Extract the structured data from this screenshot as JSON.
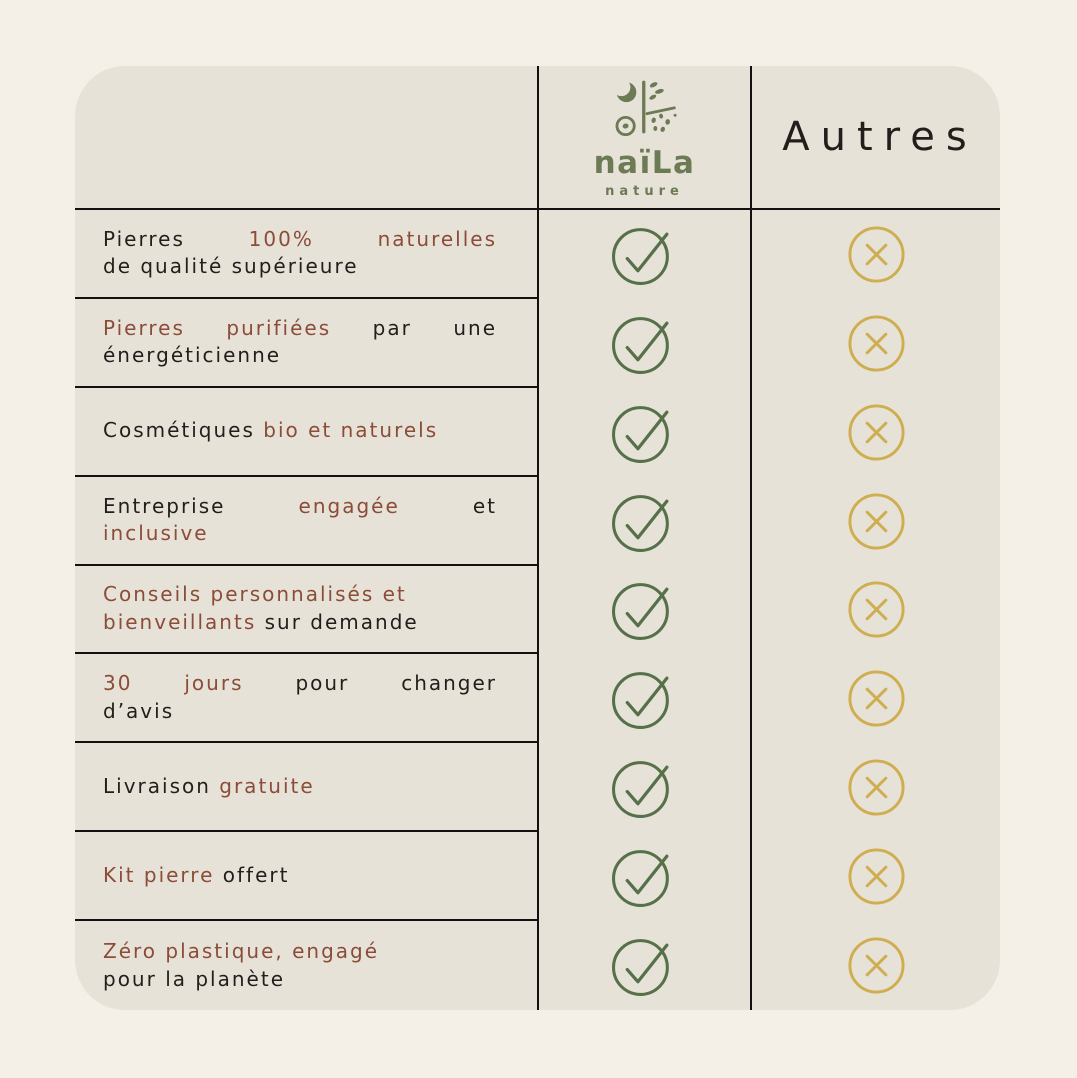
{
  "colors": {
    "page_bg": "#f4f0e8",
    "card_bg": "#e7e2d8",
    "line": "#131110",
    "dark_text": "#221e1b",
    "accent_text": "#8b4c38",
    "check_green": "#567049",
    "cross_gold": "#cfae52",
    "logo_green": "#6c7b53"
  },
  "header": {
    "brand": {
      "logo_icon": "naila-moon-plant-logo-icon",
      "name": "naïLa",
      "tagline": "nature"
    },
    "other_column_label": "Autres"
  },
  "icons": {
    "check": {
      "name": "check-circle-icon",
      "meaning": "included"
    },
    "cross": {
      "name": "cross-circle-icon",
      "meaning": "not included"
    }
  },
  "rows": [
    {
      "naila": "check",
      "autres": "cross",
      "lines": [
        {
          "justify": true,
          "parts": [
            {
              "text": "Pierres",
              "accent": false
            },
            {
              "text": "100%",
              "accent": true
            },
            {
              "text": "naturelles",
              "accent": true
            }
          ]
        },
        {
          "justify": false,
          "parts": [
            {
              "text": "de qualité supérieure",
              "accent": false
            }
          ]
        }
      ]
    },
    {
      "naila": "check",
      "autres": "cross",
      "lines": [
        {
          "justify": true,
          "parts": [
            {
              "text": "Pierres purifiées",
              "accent": true
            },
            {
              "text": "par une",
              "accent": false
            }
          ]
        },
        {
          "justify": false,
          "parts": [
            {
              "text": "énergéticienne",
              "accent": false
            }
          ]
        }
      ]
    },
    {
      "naila": "check",
      "autres": "cross",
      "lines": [
        {
          "justify": false,
          "parts": [
            {
              "text": "Cosmétiques",
              "accent": false
            },
            {
              "text": "bio et naturels",
              "accent": true
            }
          ]
        }
      ]
    },
    {
      "naila": "check",
      "autres": "cross",
      "lines": [
        {
          "justify": true,
          "parts": [
            {
              "text": "Entreprise",
              "accent": false
            },
            {
              "text": "engagée",
              "accent": true
            },
            {
              "text": "et",
              "accent": false
            }
          ]
        },
        {
          "justify": false,
          "parts": [
            {
              "text": "inclusive",
              "accent": true
            }
          ]
        }
      ]
    },
    {
      "naila": "check",
      "autres": "cross",
      "lines": [
        {
          "justify": false,
          "parts": [
            {
              "text": "Conseils personnalisés et",
              "accent": true
            }
          ]
        },
        {
          "justify": false,
          "parts": [
            {
              "text": "bienveillants",
              "accent": true
            },
            {
              "text": "sur demande",
              "accent": false
            }
          ]
        }
      ]
    },
    {
      "naila": "check",
      "autres": "cross",
      "lines": [
        {
          "justify": true,
          "parts": [
            {
              "text": "30 jours",
              "accent": true
            },
            {
              "text": "pour changer",
              "accent": false
            }
          ]
        },
        {
          "justify": false,
          "parts": [
            {
              "text": "d’avis",
              "accent": false
            }
          ]
        }
      ]
    },
    {
      "naila": "check",
      "autres": "cross",
      "lines": [
        {
          "justify": false,
          "parts": [
            {
              "text": "Livraison",
              "accent": false
            },
            {
              "text": "gratuite",
              "accent": true
            }
          ]
        }
      ]
    },
    {
      "naila": "check",
      "autres": "cross",
      "lines": [
        {
          "justify": false,
          "parts": [
            {
              "text": "Kit pierre",
              "accent": true
            },
            {
              "text": "offert",
              "accent": false
            }
          ]
        }
      ]
    },
    {
      "naila": "check",
      "autres": "cross",
      "lines": [
        {
          "justify": false,
          "parts": [
            {
              "text": "Zéro plastique, engagé",
              "accent": true
            }
          ]
        },
        {
          "justify": false,
          "parts": [
            {
              "text": "pour la planète",
              "accent": false
            }
          ]
        }
      ]
    }
  ]
}
